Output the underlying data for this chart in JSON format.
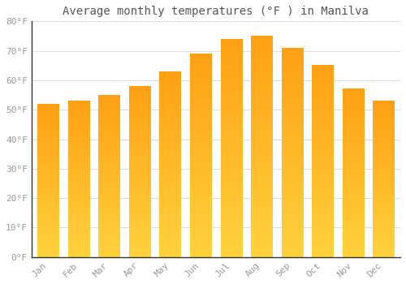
{
  "months": [
    "Jan",
    "Feb",
    "Mar",
    "Apr",
    "May",
    "Jun",
    "Jul",
    "Aug",
    "Sep",
    "Oct",
    "Nov",
    "Dec"
  ],
  "values": [
    52,
    53,
    55,
    58,
    63,
    69,
    74,
    75,
    71,
    65,
    57,
    53
  ],
  "bar_color_bottom": "#FFCC33",
  "bar_color_top": "#FFA500",
  "title": "Average monthly temperatures (°F ) in Manilva",
  "ylim": [
    0,
    80
  ],
  "ytick_step": 10,
  "background_color": "#FFFFFF",
  "grid_color": "#DDDDDD",
  "title_fontsize": 10,
  "tick_fontsize": 8,
  "tick_color": "#999999",
  "font_family": "monospace"
}
